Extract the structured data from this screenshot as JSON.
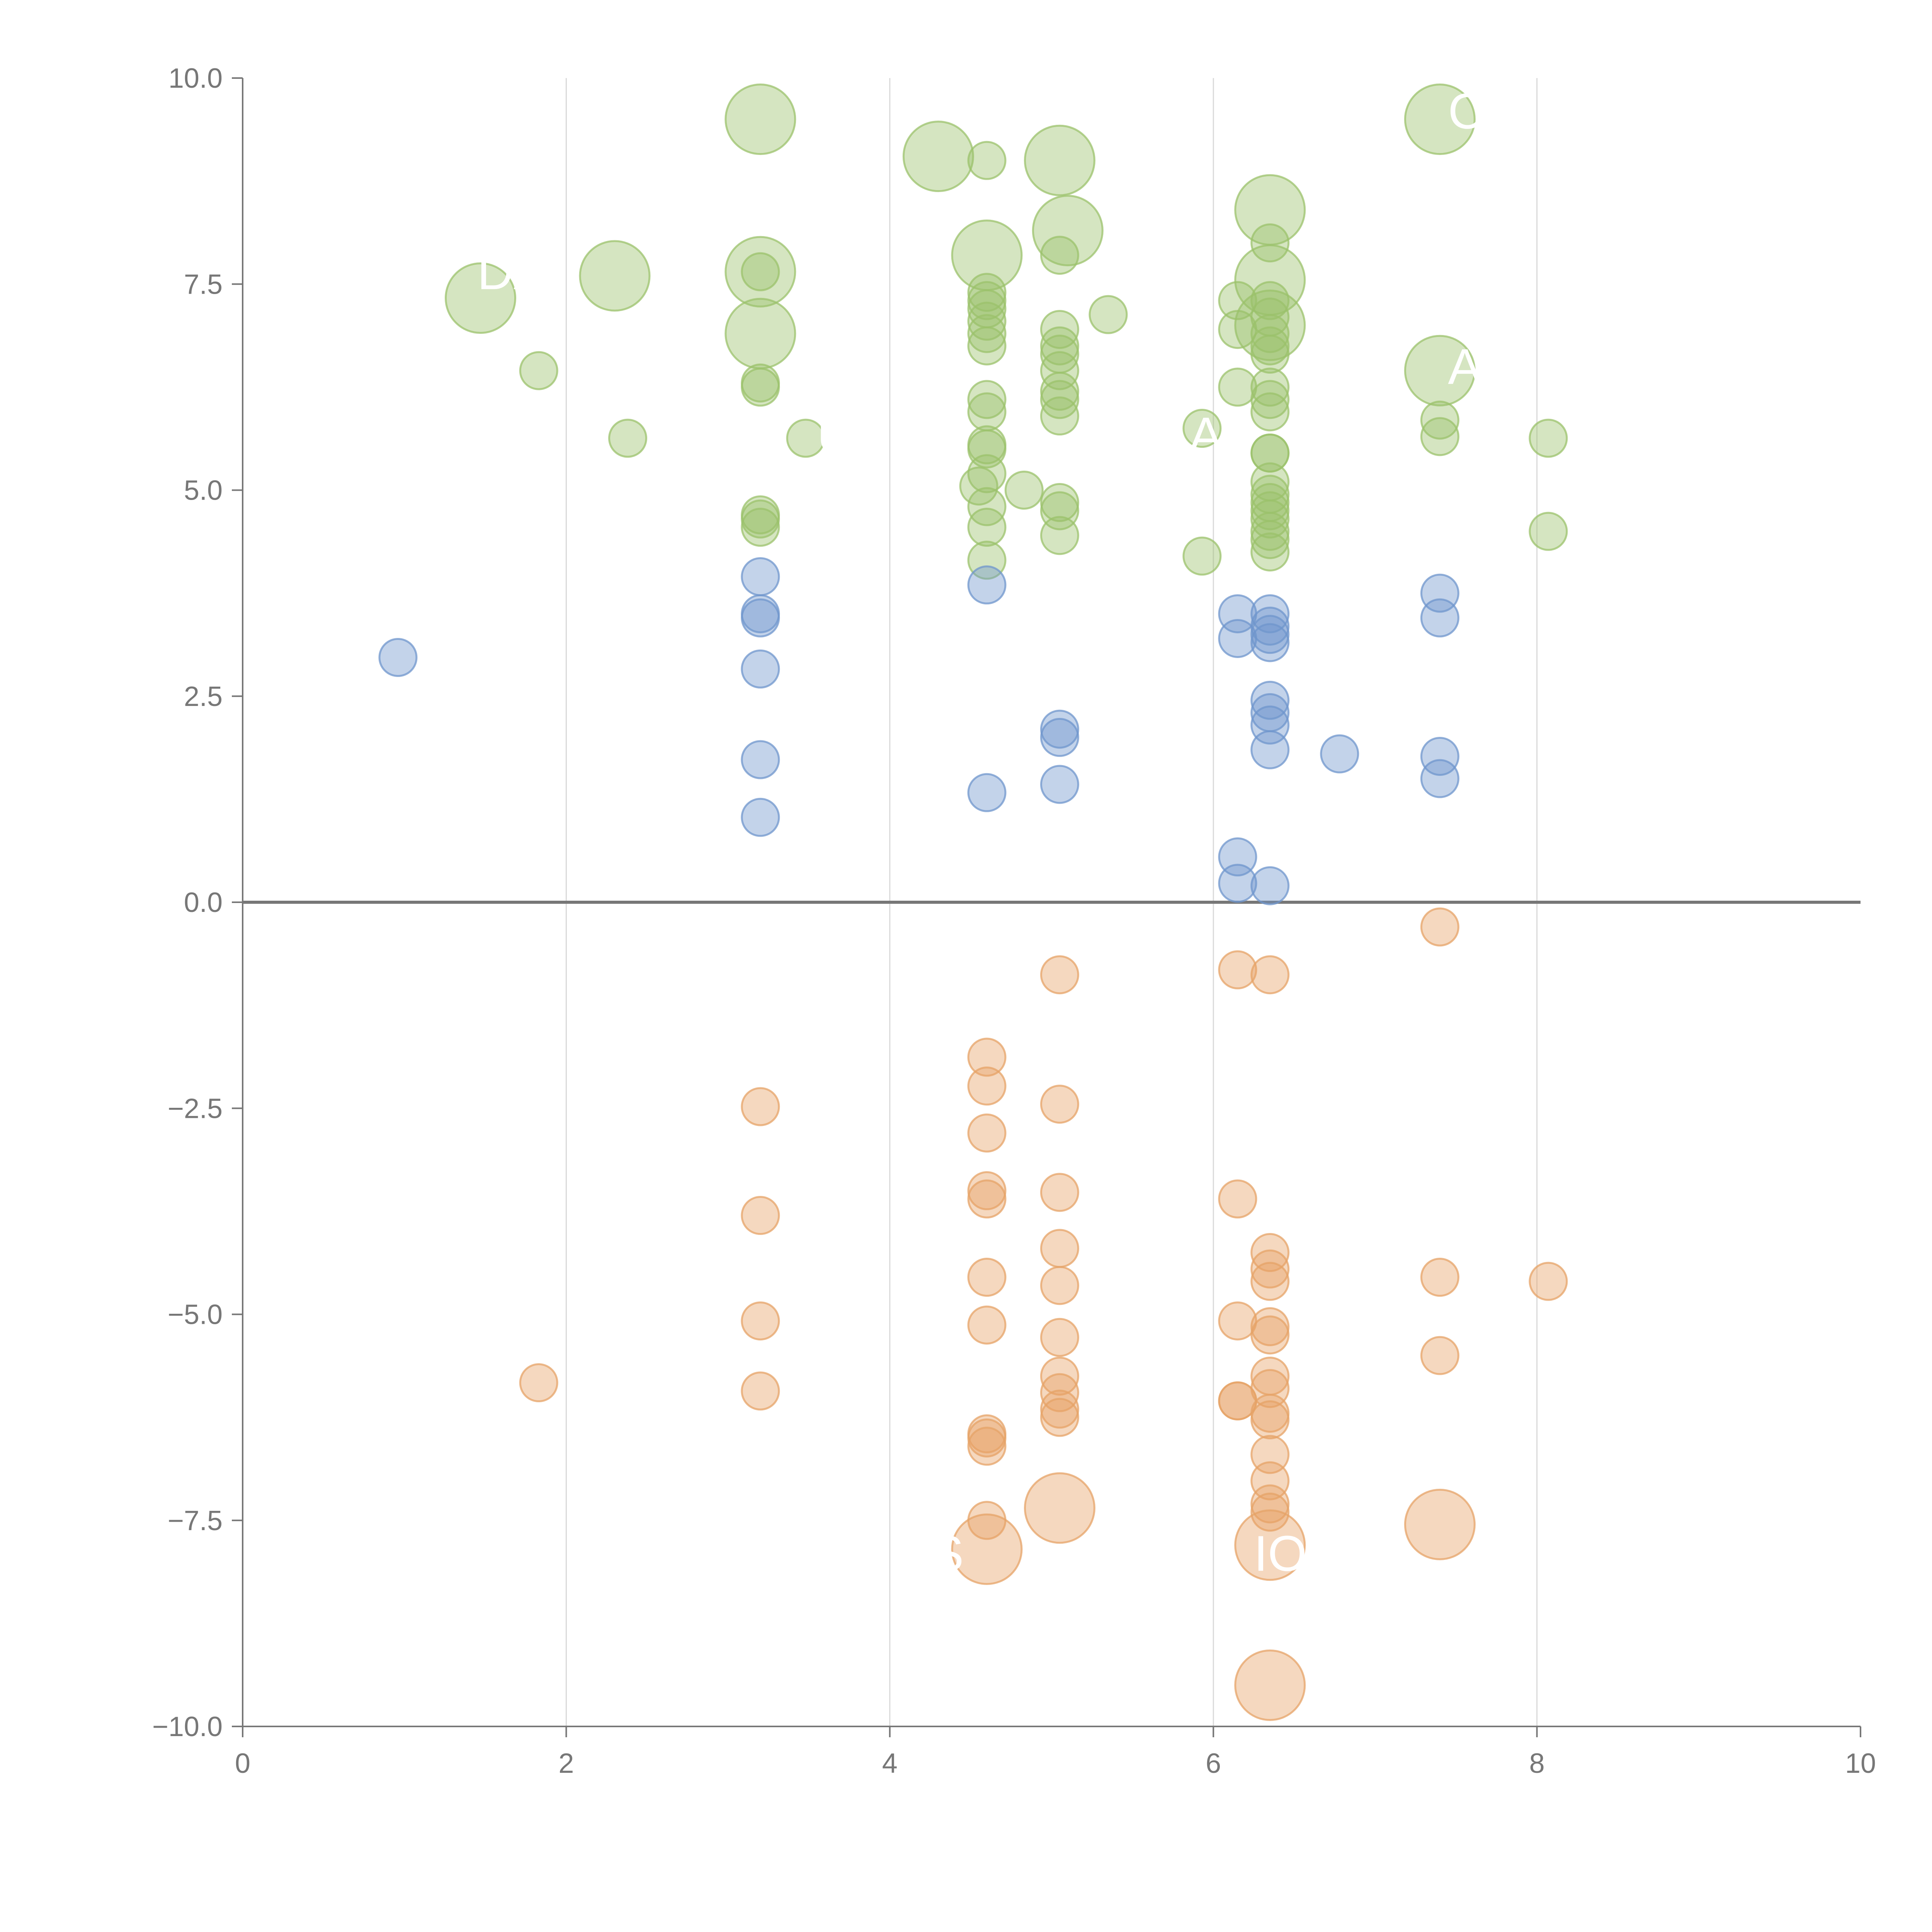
{
  "chart_data": {
    "type": "scatter",
    "title": "",
    "xlabel": "",
    "ylabel": "",
    "xlim": [
      0,
      10
    ],
    "ylim": [
      -10,
      10
    ],
    "x_ticks": [
      "0",
      "2",
      "4",
      "6",
      "8",
      "10"
    ],
    "y_ticks": [
      "10.0",
      "7.5",
      "5.0",
      "2.5",
      "0.0",
      "−2.5",
      "−5.0",
      "−7.5",
      "−10.0"
    ],
    "grid": "vertical",
    "zero_line": true,
    "colors": {
      "green": "#9bc26b",
      "blue": "#6f95cc",
      "orange": "#e6a367"
    },
    "series": [
      {
        "color_key": "green",
        "points": [
          {
            "x": 3.2,
            "y": 9.5,
            "s": 1
          },
          {
            "x": 4.3,
            "y": 9.05,
            "s": 1
          },
          {
            "x": 5.05,
            "y": 9.0,
            "s": 1
          },
          {
            "x": 4.6,
            "y": 9.0,
            "s": 0
          },
          {
            "x": 7.4,
            "y": 9.5,
            "s": 1
          },
          {
            "x": 6.35,
            "y": 8.4,
            "s": 1
          },
          {
            "x": 5.1,
            "y": 8.15,
            "s": 1
          },
          {
            "x": 6.35,
            "y": 8.0,
            "s": 0
          },
          {
            "x": 4.6,
            "y": 7.85,
            "s": 1
          },
          {
            "x": 5.05,
            "y": 7.85,
            "s": 0
          },
          {
            "x": 2.3,
            "y": 7.6,
            "s": 1
          },
          {
            "x": 3.2,
            "y": 7.65,
            "s": 1
          },
          {
            "x": 3.2,
            "y": 7.65,
            "s": 0
          },
          {
            "x": 6.35,
            "y": 7.55,
            "s": 1
          },
          {
            "x": 1.47,
            "y": 7.33,
            "s": 1
          },
          {
            "x": 4.6,
            "y": 7.4,
            "s": 0
          },
          {
            "x": 4.6,
            "y": 7.3,
            "s": 0
          },
          {
            "x": 4.6,
            "y": 7.2,
            "s": 0
          },
          {
            "x": 4.6,
            "y": 7.05,
            "s": 0
          },
          {
            "x": 4.6,
            "y": 6.9,
            "s": 0
          },
          {
            "x": 4.6,
            "y": 6.75,
            "s": 0
          },
          {
            "x": 5.35,
            "y": 7.13,
            "s": 0
          },
          {
            "x": 6.15,
            "y": 7.3,
            "s": 0
          },
          {
            "x": 6.35,
            "y": 7.3,
            "s": 0
          },
          {
            "x": 6.35,
            "y": 7.1,
            "s": 0
          },
          {
            "x": 6.35,
            "y": 7.0,
            "s": 1
          },
          {
            "x": 6.15,
            "y": 6.95,
            "s": 0
          },
          {
            "x": 6.35,
            "y": 6.9,
            "s": 0
          },
          {
            "x": 6.35,
            "y": 6.75,
            "s": 0
          },
          {
            "x": 6.35,
            "y": 6.65,
            "s": 0
          },
          {
            "x": 5.05,
            "y": 6.95,
            "s": 0
          },
          {
            "x": 5.05,
            "y": 6.75,
            "s": 0
          },
          {
            "x": 5.05,
            "y": 6.65,
            "s": 0
          },
          {
            "x": 5.05,
            "y": 6.45,
            "s": 0
          },
          {
            "x": 3.2,
            "y": 6.9,
            "s": 1
          },
          {
            "x": 1.83,
            "y": 6.45,
            "s": 0
          },
          {
            "x": 7.4,
            "y": 6.45,
            "s": 1
          },
          {
            "x": 3.2,
            "y": 6.3,
            "s": 0
          },
          {
            "x": 3.2,
            "y": 6.25,
            "s": 0
          },
          {
            "x": 6.15,
            "y": 6.25,
            "s": 0
          },
          {
            "x": 6.35,
            "y": 6.25,
            "s": 0
          },
          {
            "x": 6.35,
            "y": 6.1,
            "s": 0
          },
          {
            "x": 6.35,
            "y": 5.95,
            "s": 0
          },
          {
            "x": 4.6,
            "y": 6.1,
            "s": 0
          },
          {
            "x": 4.6,
            "y": 5.95,
            "s": 0
          },
          {
            "x": 5.05,
            "y": 6.2,
            "s": 0
          },
          {
            "x": 5.05,
            "y": 6.1,
            "s": 0
          },
          {
            "x": 5.05,
            "y": 5.9,
            "s": 0
          },
          {
            "x": 7.4,
            "y": 5.85,
            "s": 0
          },
          {
            "x": 7.4,
            "y": 5.65,
            "s": 0
          },
          {
            "x": 8.07,
            "y": 5.63,
            "s": 0
          },
          {
            "x": 2.38,
            "y": 5.63,
            "s": 0
          },
          {
            "x": 3.48,
            "y": 5.63,
            "s": 0
          },
          {
            "x": 5.93,
            "y": 5.75,
            "s": 0
          },
          {
            "x": 4.6,
            "y": 5.55,
            "s": 0
          },
          {
            "x": 4.6,
            "y": 5.5,
            "s": 0
          },
          {
            "x": 4.6,
            "y": 5.2,
            "s": 0
          },
          {
            "x": 4.55,
            "y": 5.05,
            "s": 0
          },
          {
            "x": 4.83,
            "y": 5.0,
            "s": 0
          },
          {
            "x": 6.35,
            "y": 5.45,
            "s": 0
          },
          {
            "x": 6.35,
            "y": 5.45,
            "s": 0
          },
          {
            "x": 6.35,
            "y": 5.1,
            "s": 0
          },
          {
            "x": 6.35,
            "y": 4.95,
            "s": 0
          },
          {
            "x": 6.35,
            "y": 4.85,
            "s": 0
          },
          {
            "x": 6.35,
            "y": 4.75,
            "s": 0
          },
          {
            "x": 6.35,
            "y": 4.65,
            "s": 0
          },
          {
            "x": 6.35,
            "y": 4.5,
            "s": 0
          },
          {
            "x": 6.35,
            "y": 4.4,
            "s": 0
          },
          {
            "x": 6.35,
            "y": 4.25,
            "s": 0
          },
          {
            "x": 5.05,
            "y": 4.85,
            "s": 0
          },
          {
            "x": 5.05,
            "y": 4.75,
            "s": 0
          },
          {
            "x": 5.05,
            "y": 4.45,
            "s": 0
          },
          {
            "x": 4.6,
            "y": 4.8,
            "s": 0
          },
          {
            "x": 4.6,
            "y": 4.55,
            "s": 0
          },
          {
            "x": 4.6,
            "y": 4.15,
            "s": 0
          },
          {
            "x": 3.2,
            "y": 4.7,
            "s": 0
          },
          {
            "x": 3.2,
            "y": 4.65,
            "s": 0
          },
          {
            "x": 3.2,
            "y": 4.55,
            "s": 0
          },
          {
            "x": 8.07,
            "y": 4.5,
            "s": 0
          },
          {
            "x": 5.93,
            "y": 4.2,
            "s": 0
          }
        ]
      },
      {
        "color_key": "blue",
        "points": [
          {
            "x": 3.2,
            "y": 3.95,
            "s": 0
          },
          {
            "x": 4.6,
            "y": 3.85,
            "s": 0
          },
          {
            "x": 7.4,
            "y": 3.75,
            "s": 0
          },
          {
            "x": 6.15,
            "y": 3.5,
            "s": 0
          },
          {
            "x": 6.35,
            "y": 3.5,
            "s": 0
          },
          {
            "x": 6.35,
            "y": 3.35,
            "s": 0
          },
          {
            "x": 6.35,
            "y": 3.25,
            "s": 0
          },
          {
            "x": 6.35,
            "y": 3.15,
            "s": 0
          },
          {
            "x": 6.15,
            "y": 3.2,
            "s": 0
          },
          {
            "x": 3.2,
            "y": 3.5,
            "s": 0
          },
          {
            "x": 3.2,
            "y": 3.45,
            "s": 0
          },
          {
            "x": 7.4,
            "y": 3.45,
            "s": 0
          },
          {
            "x": 0.96,
            "y": 2.97,
            "s": 0
          },
          {
            "x": 3.2,
            "y": 2.83,
            "s": 0
          },
          {
            "x": 6.35,
            "y": 2.45,
            "s": 0
          },
          {
            "x": 6.35,
            "y": 2.3,
            "s": 0
          },
          {
            "x": 6.35,
            "y": 2.15,
            "s": 0
          },
          {
            "x": 5.05,
            "y": 2.1,
            "s": 0
          },
          {
            "x": 5.05,
            "y": 2.0,
            "s": 0
          },
          {
            "x": 6.35,
            "y": 1.85,
            "s": 0
          },
          {
            "x": 6.78,
            "y": 1.8,
            "s": 0
          },
          {
            "x": 7.4,
            "y": 1.77,
            "s": 0
          },
          {
            "x": 3.2,
            "y": 1.73,
            "s": 0
          },
          {
            "x": 7.4,
            "y": 1.5,
            "s": 0
          },
          {
            "x": 5.05,
            "y": 1.43,
            "s": 0
          },
          {
            "x": 4.6,
            "y": 1.33,
            "s": 0
          },
          {
            "x": 3.2,
            "y": 1.03,
            "s": 0
          },
          {
            "x": 6.15,
            "y": 0.55,
            "s": 0
          },
          {
            "x": 6.15,
            "y": 0.23,
            "s": 0
          },
          {
            "x": 6.35,
            "y": 0.2,
            "s": 0
          }
        ]
      },
      {
        "color_key": "orange",
        "points": [
          {
            "x": 7.4,
            "y": -0.3,
            "s": 0
          },
          {
            "x": 6.15,
            "y": -0.82,
            "s": 0
          },
          {
            "x": 6.35,
            "y": -0.88,
            "s": 0
          },
          {
            "x": 5.05,
            "y": -0.88,
            "s": 0
          },
          {
            "x": 4.6,
            "y": -1.88,
            "s": 0
          },
          {
            "x": 4.6,
            "y": -2.23,
            "s": 0
          },
          {
            "x": 3.2,
            "y": -2.48,
            "s": 0
          },
          {
            "x": 5.05,
            "y": -2.45,
            "s": 0
          },
          {
            "x": 4.6,
            "y": -2.8,
            "s": 0
          },
          {
            "x": 4.6,
            "y": -3.5,
            "s": 0
          },
          {
            "x": 4.6,
            "y": -3.6,
            "s": 0
          },
          {
            "x": 5.05,
            "y": -3.52,
            "s": 0
          },
          {
            "x": 6.15,
            "y": -3.6,
            "s": 0
          },
          {
            "x": 3.2,
            "y": -3.8,
            "s": 0
          },
          {
            "x": 5.05,
            "y": -4.2,
            "s": 0
          },
          {
            "x": 6.35,
            "y": -4.25,
            "s": 0
          },
          {
            "x": 6.35,
            "y": -4.45,
            "s": 0
          },
          {
            "x": 6.35,
            "y": -4.6,
            "s": 0
          },
          {
            "x": 4.6,
            "y": -4.55,
            "s": 0
          },
          {
            "x": 7.4,
            "y": -4.55,
            "s": 0
          },
          {
            "x": 8.07,
            "y": -4.6,
            "s": 0
          },
          {
            "x": 5.05,
            "y": -4.65,
            "s": 0
          },
          {
            "x": 3.2,
            "y": -5.08,
            "s": 0
          },
          {
            "x": 6.15,
            "y": -5.08,
            "s": 0
          },
          {
            "x": 4.6,
            "y": -5.13,
            "s": 0
          },
          {
            "x": 6.35,
            "y": -5.15,
            "s": 0
          },
          {
            "x": 6.35,
            "y": -5.25,
            "s": 0
          },
          {
            "x": 5.05,
            "y": -5.28,
            "s": 0
          },
          {
            "x": 7.4,
            "y": -5.5,
            "s": 0
          },
          {
            "x": 1.83,
            "y": -5.83,
            "s": 0
          },
          {
            "x": 5.05,
            "y": -5.75,
            "s": 0
          },
          {
            "x": 6.35,
            "y": -5.75,
            "s": 0
          },
          {
            "x": 6.35,
            "y": -5.9,
            "s": 0
          },
          {
            "x": 3.2,
            "y": -5.93,
            "s": 0
          },
          {
            "x": 5.05,
            "y": -5.95,
            "s": 0
          },
          {
            "x": 6.15,
            "y": -6.05,
            "s": 0
          },
          {
            "x": 6.15,
            "y": -6.05,
            "s": 0
          },
          {
            "x": 5.05,
            "y": -6.15,
            "s": 0
          },
          {
            "x": 5.05,
            "y": -6.25,
            "s": 0
          },
          {
            "x": 6.35,
            "y": -6.2,
            "s": 0
          },
          {
            "x": 6.35,
            "y": -6.28,
            "s": 0
          },
          {
            "x": 4.6,
            "y": -6.45,
            "s": 0
          },
          {
            "x": 4.6,
            "y": -6.5,
            "s": 0
          },
          {
            "x": 4.6,
            "y": -6.6,
            "s": 0
          },
          {
            "x": 6.35,
            "y": -6.7,
            "s": 0
          },
          {
            "x": 6.35,
            "y": -7.02,
            "s": 0
          },
          {
            "x": 6.35,
            "y": -7.3,
            "s": 0
          },
          {
            "x": 6.35,
            "y": -7.4,
            "s": 0
          },
          {
            "x": 5.05,
            "y": -7.35,
            "s": 1
          },
          {
            "x": 4.6,
            "y": -7.5,
            "s": 0
          },
          {
            "x": 7.4,
            "y": -7.55,
            "s": 1
          },
          {
            "x": 6.35,
            "y": -7.8,
            "s": 1
          },
          {
            "x": 4.6,
            "y": -7.85,
            "s": 1
          },
          {
            "x": 6.35,
            "y": -9.5,
            "s": 1
          }
        ]
      }
    ],
    "annotations": [
      {
        "text": "DA",
        "x": 1.45,
        "y": 7.6
      },
      {
        "text": "U",
        "x": 3.55,
        "y": 5.62
      },
      {
        "text": "A",
        "x": 5.85,
        "y": 5.62
      },
      {
        "text": "C",
        "x": 7.45,
        "y": 9.55
      },
      {
        "text": "AS",
        "x": 7.45,
        "y": 6.45
      },
      {
        "text": "IO",
        "x": 6.25,
        "y": -7.95
      },
      {
        "text": "S",
        "x": 4.25,
        "y": -7.95
      }
    ]
  }
}
